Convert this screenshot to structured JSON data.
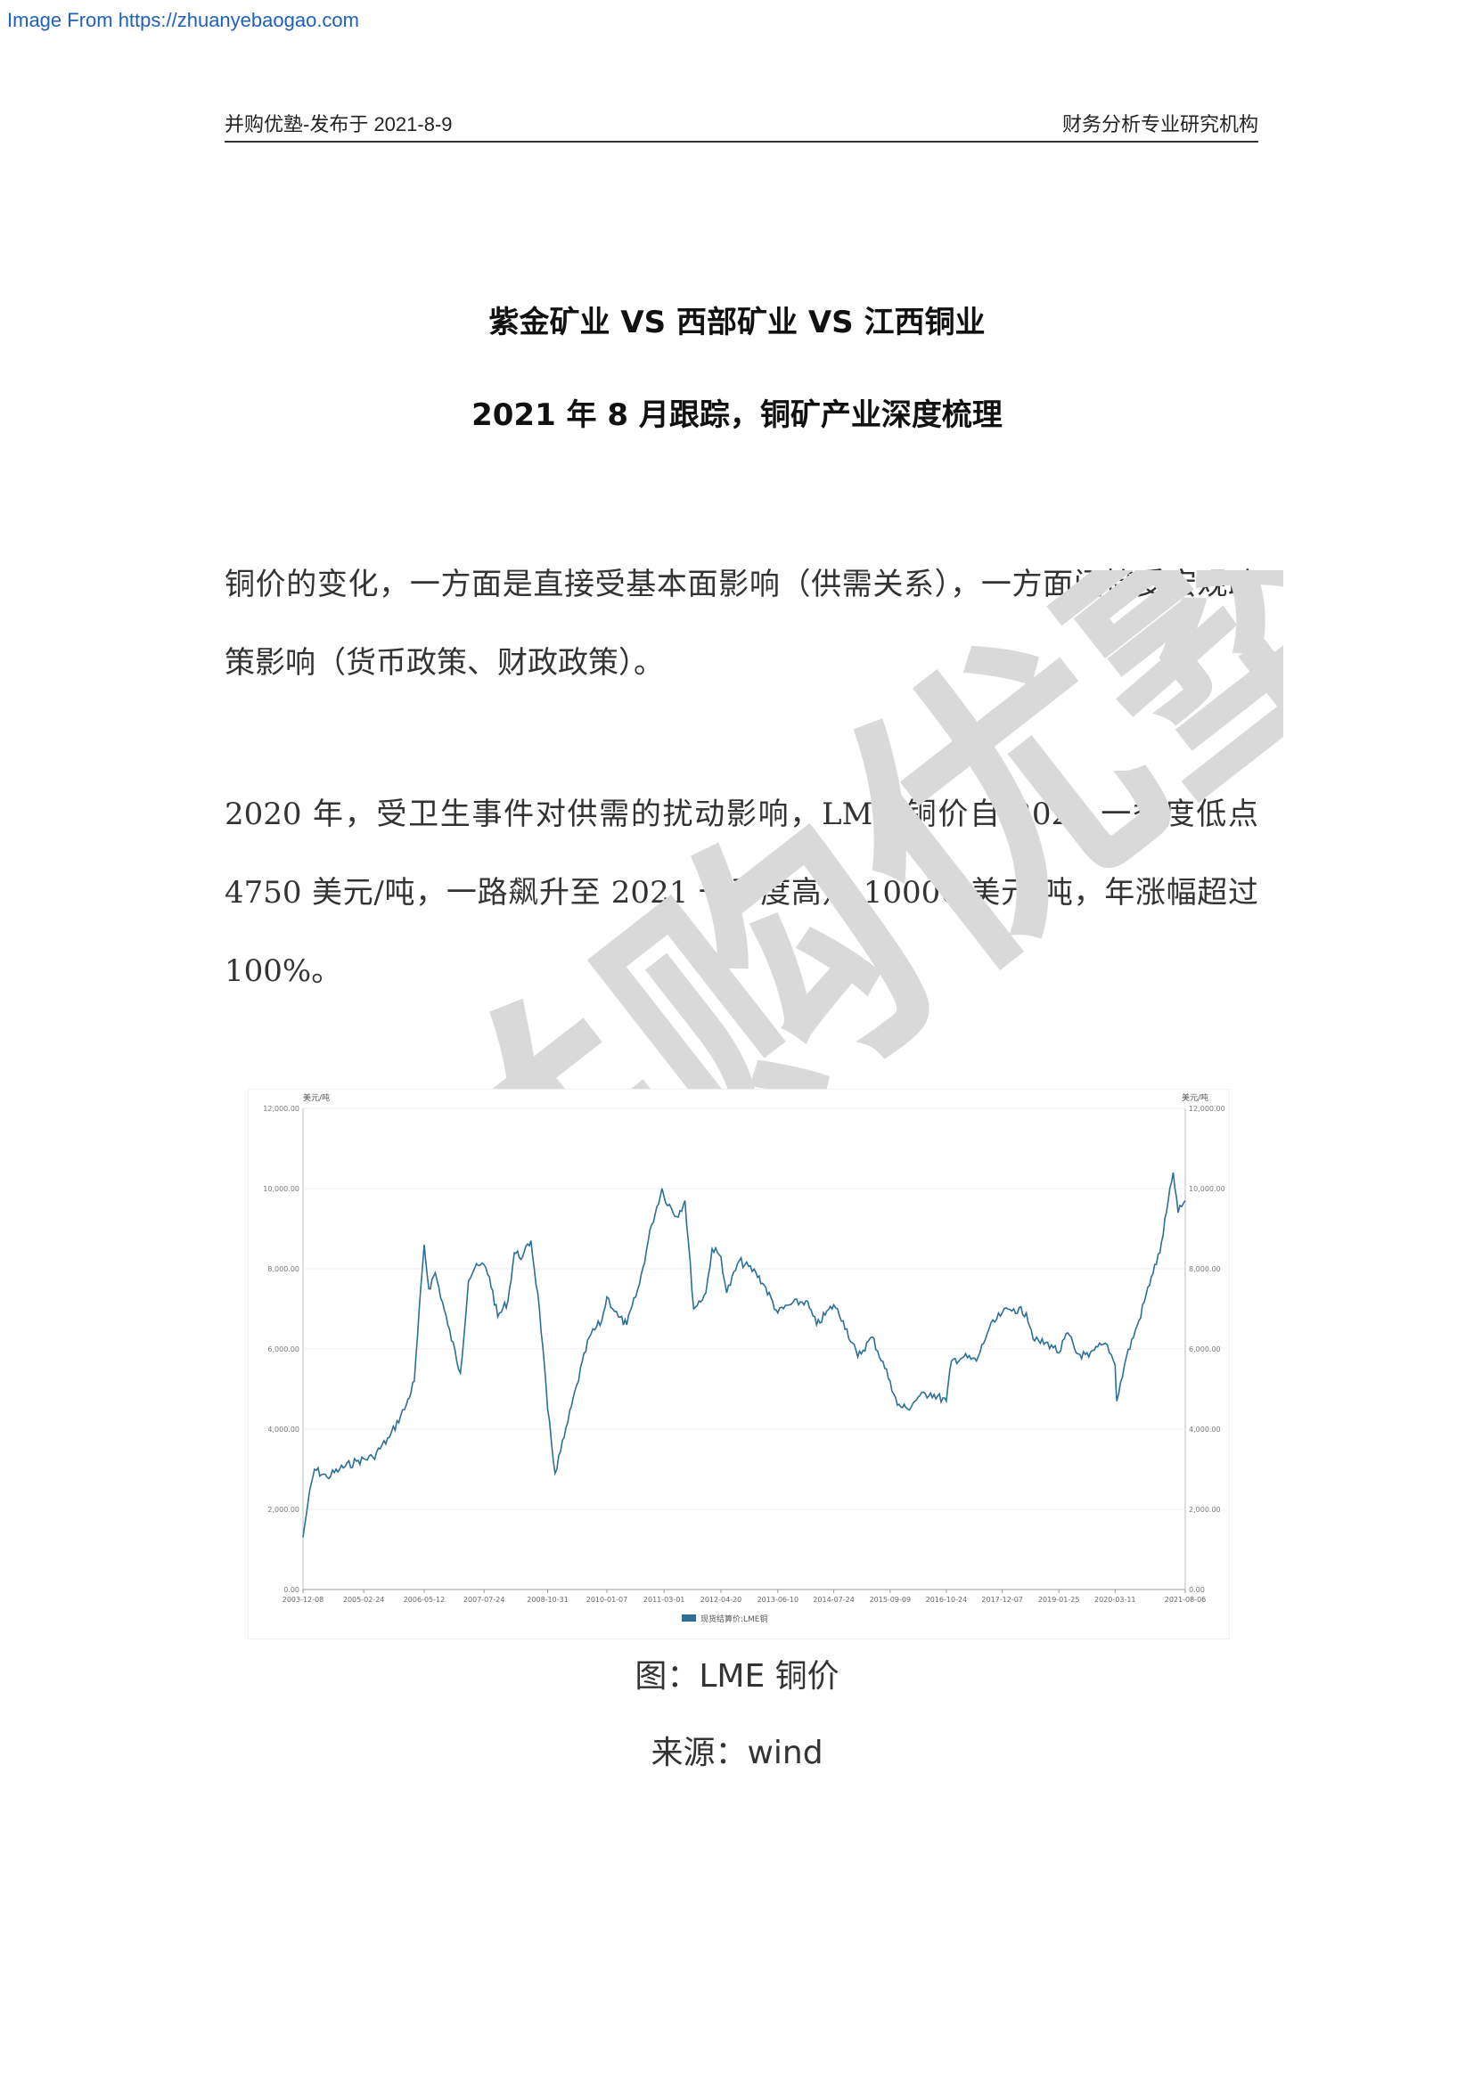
{
  "source_banner": "Image From https://zhuanyebaogao.com",
  "header": {
    "left": "并购优塾-发布于 2021-8-9",
    "right": "财务分析专业研究机构"
  },
  "title": {
    "line1": "紫金矿业 VS 西部矿业 VS 江西铜业",
    "line2": "2021 年 8 月跟踪，铜矿产业深度梳理"
  },
  "paragraphs": [
    "铜价的变化，一方面是直接受基本面影响（供需关系），一方面间接受宏观政策影响（货币政策、财政政策）。",
    "2020 年，受卫生事件对供需的扰动影响，LME 铜价自 2020 一季度低点 4750 美元/吨，一路飙升至 2021 一季度高点 10000 美元/吨，年涨幅超过 100%。"
  ],
  "watermark": {
    "text": "并购优塾",
    "color": "#d9d9d9"
  },
  "figure": {
    "caption": "图：LME 铜价",
    "source": "来源：wind"
  },
  "chart_data": {
    "type": "line",
    "y_unit_left": "美元/吨",
    "y_unit_right": "美元/吨",
    "ylim": [
      0,
      12000
    ],
    "y_ticks": [
      "0.00",
      "2,000.00",
      "4,000.00",
      "6,000.00",
      "8,000.00",
      "10,000.00",
      "12,000.00"
    ],
    "x_ticks": [
      "2003-12-08",
      "2005-02-24",
      "2006-05-12",
      "2007-07-24",
      "2008-10-31",
      "2010-01-07",
      "2011-03-01",
      "2012-04-20",
      "2013-06-10",
      "2014-07-24",
      "2015-09-09",
      "2016-10-24",
      "2017-12-07",
      "2019-01-25",
      "2020-03-11",
      "2021-08-06"
    ],
    "legend": "现货结算价:LME铜",
    "legend_position": "bottom-center",
    "grid": true,
    "line_color": "#2a6f97",
    "series": [
      {
        "name": "现货结算价:LME铜",
        "x": [
          "2003-12-08",
          "2004-01-15",
          "2004-03-01",
          "2004-06-01",
          "2004-09-01",
          "2005-01-01",
          "2005-05-01",
          "2005-09-01",
          "2006-01-01",
          "2006-03-01",
          "2006-05-12",
          "2006-06-15",
          "2006-08-01",
          "2006-11-01",
          "2007-02-01",
          "2007-04-01",
          "2007-05-15",
          "2007-07-24",
          "2007-09-01",
          "2007-11-01",
          "2008-01-15",
          "2008-03-01",
          "2008-05-01",
          "2008-07-01",
          "2008-09-01",
          "2008-10-31",
          "2008-12-24",
          "2009-03-01",
          "2009-06-01",
          "2009-09-01",
          "2009-12-01",
          "2010-01-07",
          "2010-04-01",
          "2010-06-01",
          "2010-09-01",
          "2010-12-01",
          "2011-02-14",
          "2011-03-01",
          "2011-06-01",
          "2011-08-01",
          "2011-10-04",
          "2012-01-01",
          "2012-02-15",
          "2012-04-20",
          "2012-06-01",
          "2012-09-01",
          "2013-01-01",
          "2013-03-01",
          "2013-06-10",
          "2013-09-01",
          "2014-01-01",
          "2014-03-20",
          "2014-07-24",
          "2014-10-01",
          "2015-01-15",
          "2015-05-01",
          "2015-09-09",
          "2015-11-01",
          "2016-01-15",
          "2016-04-01",
          "2016-07-01",
          "2016-10-24",
          "2016-12-01",
          "2017-03-01",
          "2017-06-01",
          "2017-09-01",
          "2017-12-07",
          "2018-03-01",
          "2018-06-01",
          "2018-08-01",
          "2018-12-01",
          "2019-01-25",
          "2019-04-01",
          "2019-06-01",
          "2019-09-01",
          "2019-12-01",
          "2020-01-15",
          "2020-03-11",
          "2020-03-23",
          "2020-06-01",
          "2020-09-01",
          "2020-12-01",
          "2021-02-01",
          "2021-05-10",
          "2021-06-15",
          "2021-08-06"
        ],
        "values": [
          1300,
          2200,
          3000,
          2800,
          3000,
          3200,
          3300,
          3800,
          4600,
          5200,
          8600,
          7500,
          7900,
          6600,
          5400,
          7700,
          8000,
          8100,
          7800,
          6800,
          7200,
          8400,
          8300,
          8700,
          7000,
          4500,
          2900,
          3800,
          5100,
          6300,
          6700,
          7300,
          6800,
          6600,
          7600,
          9100,
          10000,
          9800,
          9300,
          9700,
          7000,
          7400,
          8500,
          8300,
          7400,
          8200,
          7900,
          7600,
          6900,
          7100,
          7200,
          6600,
          7100,
          6700,
          5800,
          6300,
          5200,
          4600,
          4500,
          4800,
          4900,
          4700,
          5700,
          5800,
          5700,
          6500,
          6900,
          7000,
          6900,
          6200,
          6100,
          5900,
          6400,
          5900,
          5800,
          6100,
          6100,
          5600,
          4700,
          5800,
          6700,
          7800,
          8400,
          10400,
          9400,
          9700
        ]
      }
    ]
  }
}
